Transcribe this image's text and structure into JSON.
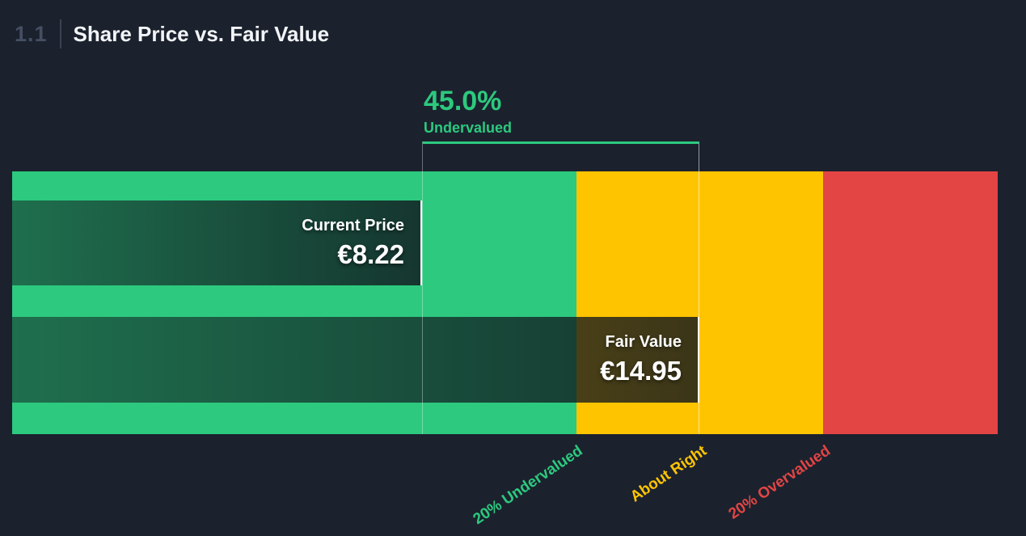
{
  "header": {
    "section_number": "1.1",
    "title": "Share Price vs. Fair Value"
  },
  "annotation": {
    "percent": "45.0%",
    "label": "Undervalued"
  },
  "markers": {
    "current_price": {
      "label": "Current Price",
      "value": "€8.22"
    },
    "fair_value": {
      "label": "Fair Value",
      "value": "€14.95"
    }
  },
  "zones": [
    {
      "label": "20% Undervalued",
      "color": "#2dc97e"
    },
    {
      "label": "About Right",
      "color": "#ffc400"
    },
    {
      "label": "20% Overvalued",
      "color": "#e34444"
    }
  ],
  "colors": {
    "background": "#1b222e",
    "undervalued_green": "#2dc97e",
    "about_right_yellow": "#ffc400",
    "overvalued_red": "#e34444",
    "marker_text": "#ffffff",
    "section_number_gray": "#454f61",
    "title_white": "#f2f4f7"
  },
  "chart_data": {
    "type": "bar",
    "title": "Share Price vs. Fair Value",
    "currency": "EUR",
    "series": [
      {
        "name": "Current Price",
        "value": 8.22
      },
      {
        "name": "Fair Value",
        "value": 14.95
      }
    ],
    "discount_percent": 45.0,
    "valuation_state": "Undervalued",
    "zone_ticks": [
      "20% Undervalued",
      "About Right",
      "20% Overvalued"
    ],
    "legend_position": "none",
    "grid": false
  }
}
